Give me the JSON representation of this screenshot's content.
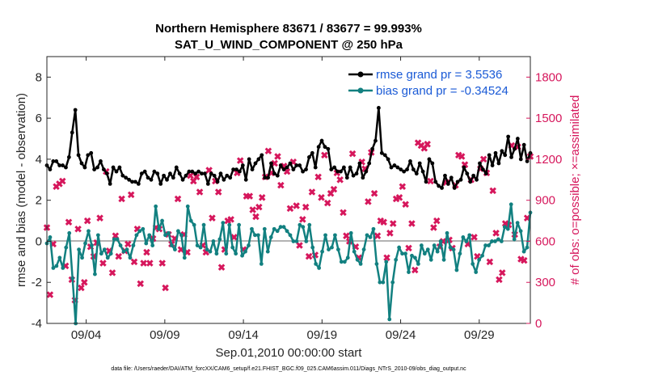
{
  "chart_data": {
    "type": "line",
    "title_line1": "Northern Hemisphere 83671 / 83677 = 99.993%",
    "title_line2": "SAT_U_WIND_COMPONENT @ 250 hPa",
    "xlabel": "Sep.01,2010 00:00:00 start",
    "ylabel_left": "rmse and bias (model - observation)",
    "ylabel_right": "# of obs: o=possible; ×=assimilated",
    "footer": "data file: /Users/raeder/DAI/ATM_forcXX/CAM6_setup/f.e21.FHIST_BGC.f09_025.CAM6assim.011/Diags_NTrS_2010-09/obs_diag_output.nc",
    "xlim": [
      1.5,
      32.25
    ],
    "ylim_left": [
      -4,
      9
    ],
    "ylim_right": [
      0,
      1950
    ],
    "x_ticks": [
      {
        "x": 4,
        "label": "09/04"
      },
      {
        "x": 9,
        "label": "09/09"
      },
      {
        "x": 14,
        "label": "09/14"
      },
      {
        "x": 19,
        "label": "09/19"
      },
      {
        "x": 24,
        "label": "09/24"
      },
      {
        "x": 29,
        "label": "09/29"
      }
    ],
    "y_ticks_left": [
      -4,
      -2,
      0,
      2,
      4,
      6,
      8
    ],
    "y_ticks_right": [
      0,
      300,
      600,
      900,
      1200,
      1500,
      1800
    ],
    "colors": {
      "rmse": "#000000",
      "bias": "#128080",
      "obs": "#d6175c",
      "zero_line": "#b3b3b3",
      "legend_text": "#1a5ad6"
    },
    "series": [
      {
        "name": "rmse grand pr = 3.5536",
        "values": [
          3.7,
          3.5,
          3.9,
          3.9,
          3.7,
          3.7,
          3.6,
          4.1,
          5.3,
          6.4,
          4.2,
          3.8,
          3.6,
          4.2,
          4.3,
          3.5,
          3.6,
          3.9,
          3.5,
          3.3,
          2.8,
          3.6,
          3.4,
          3.6,
          3.2,
          3.1,
          3.0,
          2.9,
          2.9,
          2.8,
          3.3,
          3.4,
          3.1,
          3.0,
          3.4,
          3.3,
          2.8,
          3.2,
          3.0,
          3.3,
          3.1,
          3.6,
          3.3,
          3.0,
          3.2,
          3.4,
          3.4,
          3.3,
          3.4,
          3.3,
          3.3,
          2.8,
          3.3,
          3.2,
          2.9,
          3.3,
          3.0,
          3.2,
          3.1,
          3.5,
          3.5,
          3.4,
          3.7,
          3.0,
          4.0,
          3.5,
          3.8,
          4.0,
          4.2,
          3.1,
          3.1,
          3.8,
          3.3,
          3.2,
          3.7,
          3.5,
          3.6,
          3.8,
          3.5,
          3.7,
          3.7,
          3.4,
          3.5,
          4.1,
          4.3,
          3.6,
          4.6,
          4.9,
          4.6,
          4.5,
          3.5,
          3.6,
          3.4,
          3.4,
          3.6,
          3.1,
          3.6,
          3.2,
          3.3,
          3.8,
          3.1,
          3.4,
          3.8,
          4.5,
          4.9,
          6.5,
          4.3,
          4.2,
          4.0,
          3.6,
          3.7,
          3.6,
          3.5,
          3.4,
          3.5,
          3.9,
          3.5,
          3.3,
          3.8,
          3.4,
          2.9,
          4.0,
          3.8,
          2.9,
          2.7,
          2.6,
          3.2,
          2.8,
          3.1,
          2.6,
          2.9,
          3.0,
          3.6,
          3.3,
          2.9,
          3.2,
          3.0,
          3.8,
          3.5,
          3.3,
          4.2,
          3.7,
          4.3,
          3.8,
          4.4,
          4.2,
          5.1,
          4.1,
          4.5,
          5.0,
          4.0,
          4.7,
          3.9,
          4.3
        ]
      },
      {
        "name": "bias grand pr = -0.34524",
        "values": [
          -0.1,
          0.2,
          -1.3,
          -1.2,
          -0.8,
          -1.3,
          -0.3,
          0.4,
          -1.8,
          -4.0,
          -0.4,
          -0.8,
          -0.1,
          0.5,
          -0.2,
          -1.6,
          0.3,
          -0.6,
          -0.4,
          -0.8,
          -0.6,
          0.1,
          0.1,
          -0.2,
          -0.5,
          -0.4,
          -0.8,
          -0.2,
          0.3,
          0.5,
          0.6,
          -0.1,
          0.3,
          -0.2,
          1.7,
          0.6,
          1.0,
          0.3,
          0.4,
          -0.2,
          -0.4,
          0.5,
          0.3,
          -0.8,
          1.7,
          1.0,
          0.8,
          -0.2,
          -0.3,
          0.8,
          -0.4,
          -0.5,
          0.0,
          -0.6,
          0.1,
          0.9,
          -0.6,
          0.8,
          -0.3,
          -0.6,
          0.8,
          -0.7,
          -0.5,
          -0.2,
          0.6,
          0.3,
          0.3,
          -1.1,
          0.6,
          -0.5,
          0.2,
          0.6,
          0.5,
          0.7,
          0.7,
          0.5,
          0.3,
          0.0,
          0.0,
          0.8,
          0.7,
          0.0,
          0.8,
          -0.3,
          -1.1,
          -1.3,
          -0.5,
          0.3,
          -0.4,
          -0.3,
          0.3,
          -0.4,
          -1.0,
          -1.0,
          -0.8,
          0.4,
          -0.5,
          -0.9,
          -1.1,
          -0.4,
          0.3,
          0.2,
          0.6,
          -1.1,
          -2.0,
          -2.0,
          -1.0,
          -3.8,
          -2.0,
          -0.9,
          -0.3,
          -0.6,
          -0.6,
          -1.5,
          -0.7,
          -0.8,
          -1.1,
          -0.2,
          -0.6,
          -0.4,
          -0.9,
          -0.2,
          -0.5,
          0.0,
          -0.9,
          0.4,
          -0.3,
          -0.4,
          -1.4,
          -0.6,
          0.2,
          0.0,
          0.3,
          -1.1,
          -1.5,
          -0.9,
          -0.7,
          -0.2,
          -0.2,
          0.0,
          0.0,
          0.1,
          0.0,
          0.7,
          0.6,
          1.8,
          0.1,
          0.9,
          0.5,
          -0.5,
          -0.3,
          1.4
        ]
      }
    ],
    "obs_counts": [
      700,
      210,
      580,
      1000,
      1020,
      1040,
      420,
      740,
      320,
      170,
      690,
      260,
      300,
      750,
      560,
      490,
      590,
      770,
      440,
      1110,
      530,
      370,
      640,
      490,
      910,
      530,
      580,
      940,
      450,
      690,
      290,
      440,
      520,
      440,
      620,
      700,
      690,
      440,
      260,
      650,
      580,
      620,
      910,
      540,
      650,
      520,
      1080,
      1040,
      1070,
      960,
      570,
      520,
      1120,
      770,
      1040,
      960,
      410,
      540,
      750,
      760,
      630,
      1100,
      1190,
      540,
      930,
      930,
      830,
      780,
      850,
      920,
      1070,
      1260,
      1100,
      1170,
      1220,
      1010,
      1150,
      1110,
      840,
      1180,
      860,
      570,
      760,
      850,
      490,
      960,
      500,
      1070,
      920,
      1230,
      880,
      950,
      980,
      1100,
      1050,
      810,
      640,
      600,
      1240,
      560,
      480,
      1180,
      1130,
      890,
      1250,
      950,
      640,
      750,
      740,
      480,
      660,
      730,
      910,
      920,
      1000,
      870,
      550,
      730,
      390,
      1320,
      1300,
      1280,
      1310,
      1040,
      700,
      750,
      560,
      600,
      1030,
      610,
      550,
      1010,
      1230,
      1220,
      1160,
      580,
      1050,
      630,
      490,
      1130,
      1200,
      1100,
      450,
      970,
      660,
      320,
      370,
      730,
      720,
      1300,
      650,
      1290,
      470,
      460,
      770,
      1220
    ]
  }
}
